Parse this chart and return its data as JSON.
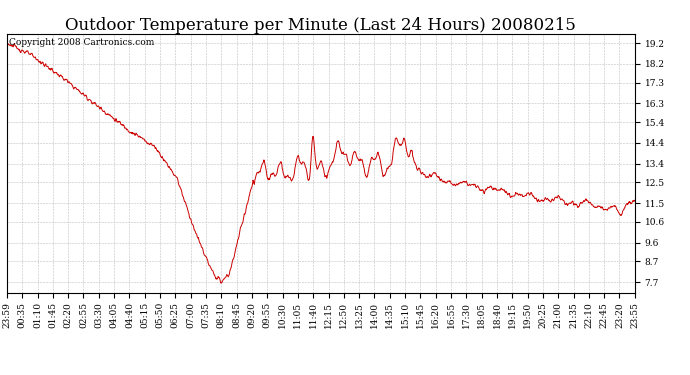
{
  "title": "Outdoor Temperature per Minute (Last 24 Hours) 20080215",
  "copyright_text": "Copyright 2008 Cartronics.com",
  "line_color": "#cc0000",
  "background_color": "#ffffff",
  "grid_color": "#b0b0b0",
  "y_ticks": [
    7.7,
    8.7,
    9.6,
    10.6,
    11.5,
    12.5,
    13.4,
    14.4,
    15.4,
    16.3,
    17.3,
    18.2,
    19.2
  ],
  "ylim": [
    7.2,
    19.65
  ],
  "x_tick_labels": [
    "23:59",
    "00:35",
    "01:10",
    "01:45",
    "02:20",
    "02:55",
    "03:30",
    "04:05",
    "04:40",
    "05:15",
    "05:50",
    "06:25",
    "07:00",
    "07:35",
    "08:10",
    "08:45",
    "09:20",
    "09:55",
    "10:30",
    "11:05",
    "11:40",
    "12:15",
    "12:50",
    "13:25",
    "14:00",
    "14:35",
    "15:10",
    "15:45",
    "16:20",
    "16:55",
    "17:30",
    "18:05",
    "18:40",
    "19:15",
    "19:50",
    "20:25",
    "21:00",
    "21:35",
    "22:10",
    "22:45",
    "23:20",
    "23:55"
  ],
  "title_fontsize": 12,
  "tick_fontsize": 6.5,
  "copyright_fontsize": 6.5,
  "n_points": 1440
}
